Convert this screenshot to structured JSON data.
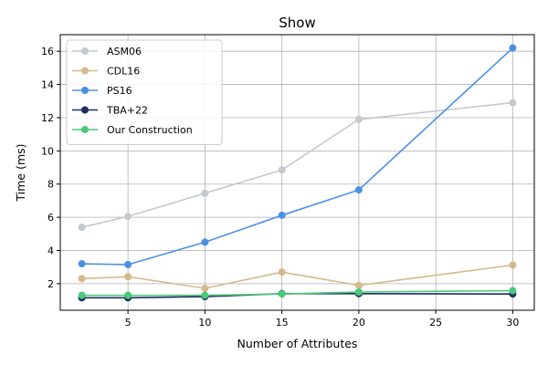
{
  "chart_data": {
    "type": "line",
    "title": "Show",
    "xlabel": "Number of Attributes",
    "ylabel": "Time (ms)",
    "x": [
      2,
      5,
      10,
      15,
      20,
      30
    ],
    "xlim": [
      0.6,
      31.4
    ],
    "ylim": [
      0.4,
      17.0
    ],
    "xticks": [
      5,
      10,
      15,
      20,
      25,
      30
    ],
    "yticks": [
      2,
      4,
      6,
      8,
      10,
      12,
      14,
      16
    ],
    "grid": true,
    "legend_position": "top-left",
    "series": [
      {
        "name": "ASM06",
        "color": "#c4c8cf",
        "values": [
          5.4,
          6.05,
          7.45,
          8.85,
          11.9,
          12.9
        ]
      },
      {
        "name": "CDL16",
        "color": "#d6b98c",
        "values": [
          2.3,
          2.42,
          1.72,
          2.7,
          1.9,
          3.12
        ]
      },
      {
        "name": "PS16",
        "color": "#4a90e2",
        "values": [
          3.2,
          3.15,
          4.5,
          6.12,
          7.65,
          16.2
        ]
      },
      {
        "name": "TBA+22",
        "color": "#1c2f5e",
        "values": [
          1.15,
          1.15,
          1.22,
          1.4,
          1.4,
          1.38
        ]
      },
      {
        "name": "Our Construction",
        "color": "#4ac97a",
        "values": [
          1.3,
          1.3,
          1.3,
          1.38,
          1.5,
          1.58
        ]
      }
    ]
  }
}
